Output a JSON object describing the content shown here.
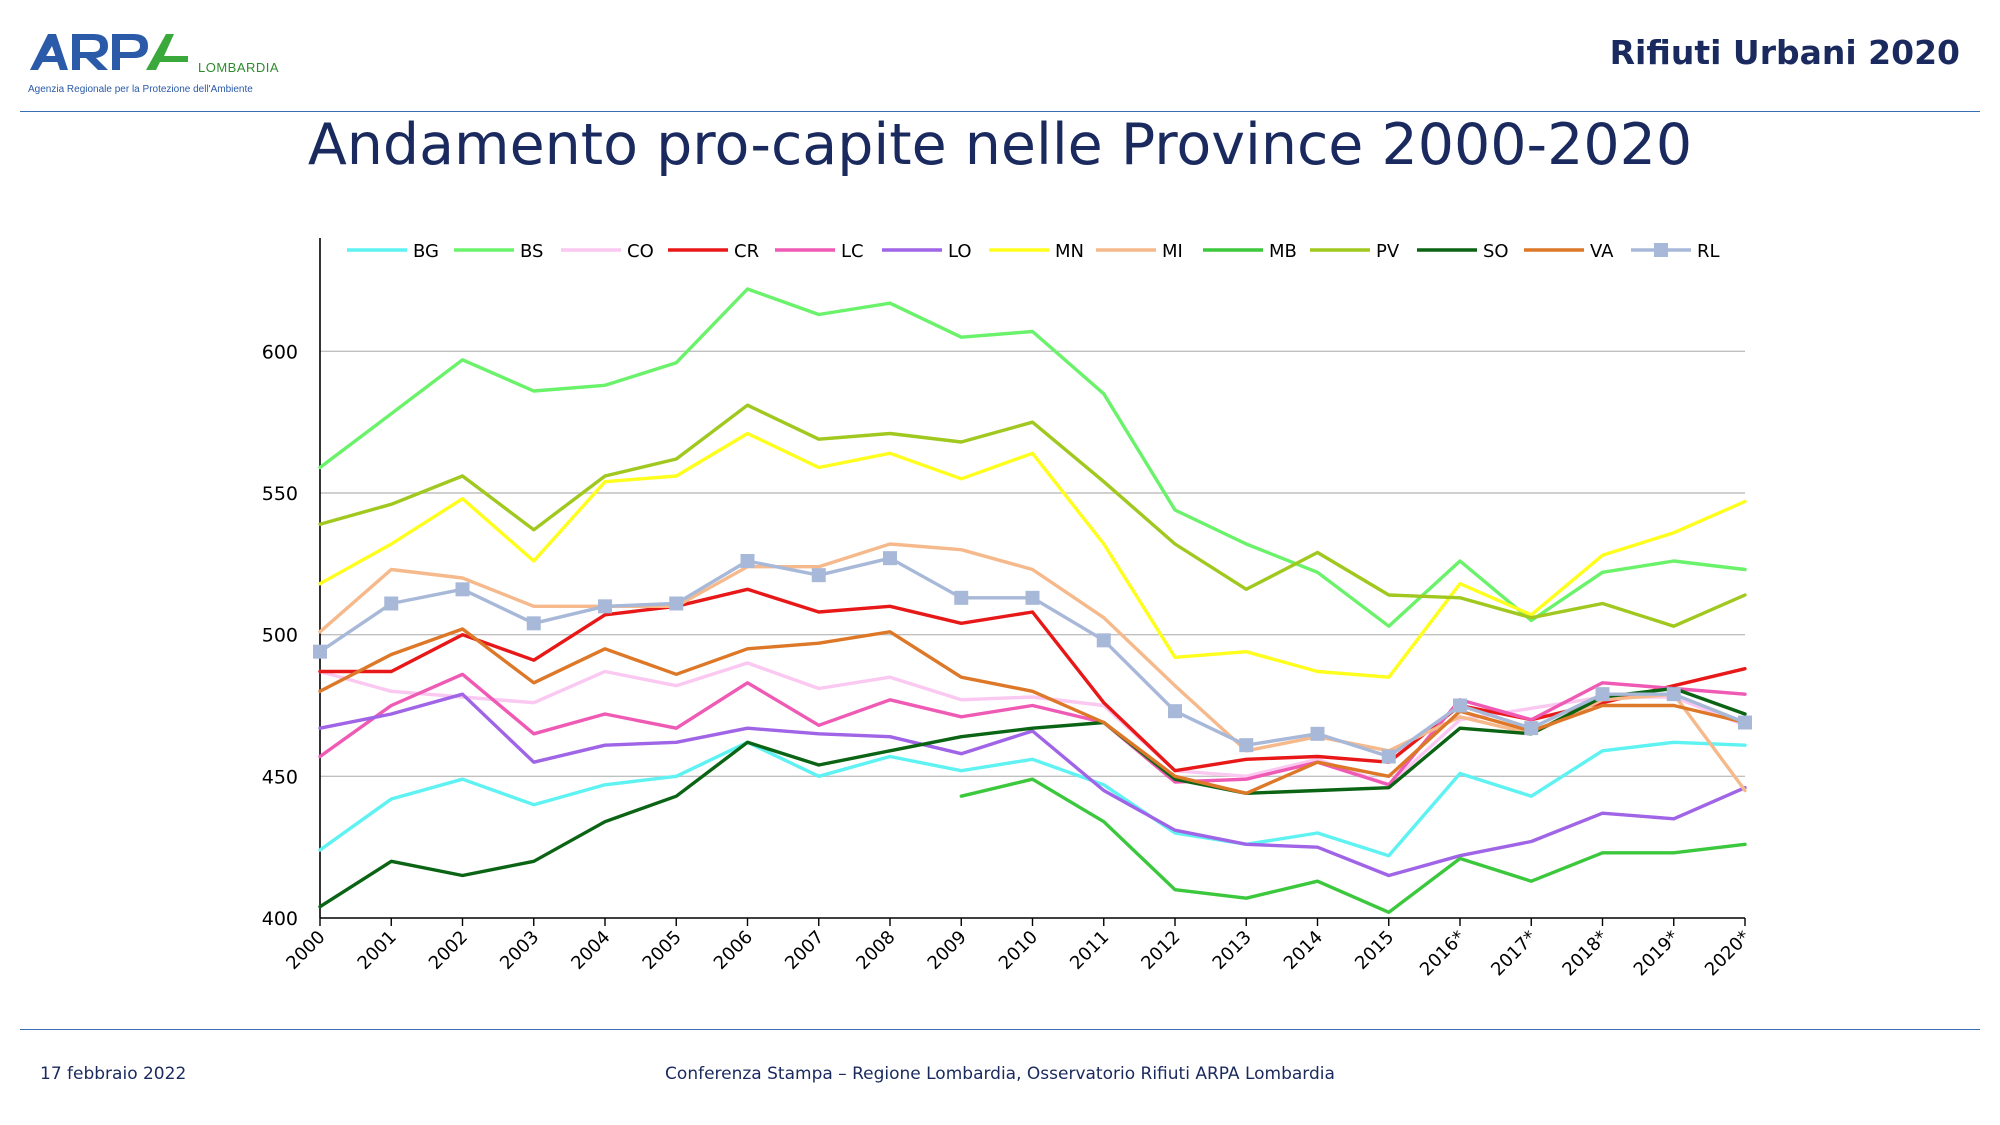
{
  "header": {
    "logo_text": "ARPA",
    "logo_subtext": "LOMBARDIA",
    "logo_tagline": "Agenzia Regionale per la Protezione dell'Ambiente",
    "report_title": "Rifiuti Urbani 2020"
  },
  "slide": {
    "title": "Andamento pro-capite nelle Province 2000-2020"
  },
  "footer": {
    "date": "17 febbraio 2022",
    "center_text": "Conferenza Stampa – Regione Lombardia, Osservatorio Rifiuti  ARPA Lombardia"
  },
  "colors": {
    "brand_dark": "#1a2a5e",
    "rule": "#3a6fb5",
    "axis": "#000000",
    "grid": "#c0c0c0"
  },
  "chart_data": {
    "type": "line",
    "title": "",
    "xlabel": "",
    "ylabel": "",
    "ylim": [
      400,
      640
    ],
    "yticks": [
      400,
      450,
      500,
      550,
      600
    ],
    "grid": true,
    "legend_position": "top",
    "categories": [
      "2000",
      "2001",
      "2002",
      "2003",
      "2004",
      "2005",
      "2006",
      "2007",
      "2008",
      "2009",
      "2010",
      "2011",
      "2012",
      "2013",
      "2014",
      "2015",
      "2016*",
      "2017*",
      "2018*",
      "2019*",
      "2020*"
    ],
    "series": [
      {
        "name": "BG",
        "color": "#5ef2f2",
        "markers": false,
        "values": [
          424,
          442,
          449,
          440,
          447,
          450,
          462,
          450,
          457,
          452,
          456,
          447,
          430,
          426,
          430,
          422,
          451,
          443,
          459,
          462,
          461
        ]
      },
      {
        "name": "BS",
        "color": "#6af26a",
        "markers": false,
        "values": [
          559,
          578,
          597,
          586,
          588,
          596,
          622,
          613,
          617,
          605,
          607,
          585,
          544,
          532,
          522,
          503,
          526,
          505,
          522,
          526,
          523
        ]
      },
      {
        "name": "CO",
        "color": "#fac8f0",
        "markers": false,
        "values": [
          487,
          480,
          478,
          476,
          487,
          482,
          490,
          481,
          485,
          477,
          478,
          475,
          452,
          450,
          456,
          447,
          470,
          474,
          478,
          478,
          468
        ]
      },
      {
        "name": "CR",
        "color": "#e81818",
        "markers": false,
        "values": [
          487,
          487,
          500,
          491,
          507,
          510,
          516,
          508,
          510,
          504,
          508,
          476,
          452,
          456,
          457,
          455,
          475,
          470,
          476,
          482,
          488
        ]
      },
      {
        "name": "LC",
        "color": "#ef5ab4",
        "markers": false,
        "values": [
          457,
          475,
          486,
          465,
          472,
          467,
          483,
          468,
          477,
          471,
          475,
          469,
          448,
          449,
          455,
          447,
          477,
          470,
          483,
          481,
          479
        ]
      },
      {
        "name": "LO",
        "color": "#a064e6",
        "markers": false,
        "values": [
          467,
          472,
          479,
          455,
          461,
          462,
          467,
          465,
          464,
          458,
          466,
          445,
          431,
          426,
          425,
          415,
          422,
          427,
          437,
          435,
          446
        ]
      },
      {
        "name": "MN",
        "color": "#ffff1e",
        "markers": false,
        "values": [
          518,
          532,
          548,
          526,
          554,
          556,
          571,
          559,
          564,
          555,
          564,
          532,
          492,
          494,
          487,
          485,
          518,
          507,
          528,
          536,
          547
        ]
      },
      {
        "name": "MI",
        "color": "#f5b98c",
        "markers": false,
        "values": [
          501,
          523,
          520,
          510,
          510,
          510,
          524,
          524,
          532,
          530,
          523,
          506,
          482,
          459,
          464,
          459,
          471,
          465,
          477,
          479,
          445
        ]
      },
      {
        "name": "MB",
        "color": "#3cc83c",
        "markers": false,
        "values": [
          null,
          null,
          null,
          null,
          null,
          null,
          null,
          null,
          null,
          443,
          449,
          434,
          410,
          407,
          413,
          402,
          421,
          413,
          423,
          423,
          426
        ]
      },
      {
        "name": "PV",
        "color": "#a0c81e",
        "markers": false,
        "values": [
          539,
          546,
          556,
          537,
          556,
          562,
          581,
          569,
          571,
          568,
          575,
          554,
          532,
          516,
          529,
          514,
          513,
          506,
          511,
          503,
          514
        ]
      },
      {
        "name": "SO",
        "color": "#0a6414",
        "markers": false,
        "values": [
          404,
          420,
          415,
          420,
          434,
          443,
          462,
          454,
          459,
          464,
          467,
          469,
          449,
          444,
          445,
          446,
          467,
          465,
          478,
          481,
          472
        ]
      },
      {
        "name": "VA",
        "color": "#dc7828",
        "markers": false,
        "values": [
          480,
          493,
          502,
          483,
          495,
          486,
          495,
          497,
          501,
          485,
          480,
          469,
          450,
          444,
          455,
          450,
          473,
          466,
          475,
          475,
          469
        ]
      },
      {
        "name": "RL",
        "color": "#a8b8d8",
        "markers": true,
        "values": [
          494,
          511,
          516,
          504,
          510,
          511,
          526,
          521,
          527,
          513,
          513,
          498,
          473,
          461,
          465,
          457,
          475,
          467,
          479,
          479,
          469
        ]
      }
    ]
  }
}
